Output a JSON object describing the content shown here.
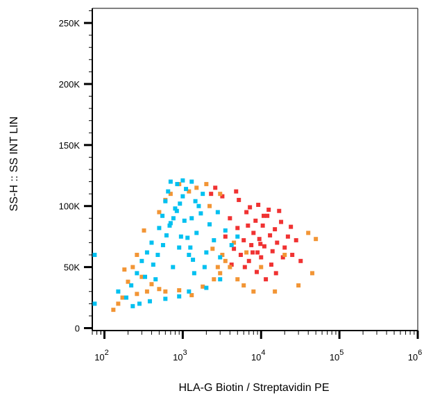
{
  "chart_data": {
    "type": "scatter",
    "title": "",
    "xlabel": "HLA-G Biotin / Streptavidin PE",
    "ylabel": "SS-H :: SS INT LIN",
    "x_scale": "log",
    "xlim": [
      70,
      1000000
    ],
    "ylim": [
      -2000,
      262000
    ],
    "x_ticks": [
      {
        "value": 100,
        "base": "10",
        "exp": "2"
      },
      {
        "value": 1000,
        "base": "10",
        "exp": "3"
      },
      {
        "value": 10000,
        "base": "10",
        "exp": "4"
      },
      {
        "value": 100000,
        "base": "10",
        "exp": "5"
      },
      {
        "value": 1000000,
        "base": "10",
        "exp": "6"
      }
    ],
    "y_ticks": [
      {
        "value": 0,
        "label": "0"
      },
      {
        "value": 50000,
        "label": "50K"
      },
      {
        "value": 100000,
        "label": "100K"
      },
      {
        "value": 150000,
        "label": "150K"
      },
      {
        "value": 200000,
        "label": "200K"
      },
      {
        "value": 250000,
        "label": "250K"
      }
    ],
    "grid": false,
    "legend": "none",
    "series": [
      {
        "color": "#f03232",
        "points": [
          [
            3500,
            75000
          ],
          [
            4000,
            90000
          ],
          [
            4500,
            65000
          ],
          [
            5000,
            82000
          ],
          [
            5500,
            60000
          ],
          [
            6000,
            72000
          ],
          [
            6500,
            95000
          ],
          [
            7000,
            55000
          ],
          [
            7500,
            68000
          ],
          [
            8000,
            78000
          ],
          [
            8500,
            88000
          ],
          [
            9000,
            62000
          ],
          [
            9500,
            73000
          ],
          [
            10000,
            58000
          ],
          [
            10500,
            84000
          ],
          [
            11000,
            67000
          ],
          [
            12000,
            92000
          ],
          [
            13000,
            76000
          ],
          [
            14000,
            63000
          ],
          [
            15000,
            81000
          ],
          [
            16000,
            70000
          ],
          [
            18000,
            87000
          ],
          [
            20000,
            66000
          ],
          [
            22000,
            75000
          ],
          [
            25000,
            60000
          ],
          [
            28000,
            72000
          ],
          [
            32000,
            55000
          ],
          [
            5200,
            105000
          ],
          [
            7200,
            99000
          ],
          [
            9200,
            101000
          ],
          [
            12500,
            97000
          ],
          [
            17000,
            96000
          ],
          [
            6200,
            50000
          ],
          [
            8800,
            46000
          ],
          [
            11500,
            40000
          ],
          [
            15500,
            45000
          ],
          [
            2600,
            115000
          ],
          [
            2300,
            110000
          ],
          [
            3200,
            108000
          ],
          [
            4800,
            112000
          ],
          [
            4200,
            52000
          ],
          [
            13500,
            52000
          ],
          [
            19000,
            58000
          ],
          [
            24000,
            83000
          ],
          [
            10800,
            92000
          ],
          [
            6800,
            84000
          ],
          [
            9800,
            69000
          ],
          [
            7800,
            62000
          ]
        ]
      },
      {
        "color": "#f29535",
        "points": [
          [
            130,
            15000
          ],
          [
            150,
            20000
          ],
          [
            170,
            25000
          ],
          [
            200,
            38000
          ],
          [
            230,
            50000
          ],
          [
            260,
            28000
          ],
          [
            300,
            42000
          ],
          [
            350,
            30000
          ],
          [
            400,
            36000
          ],
          [
            500,
            32000
          ],
          [
            600,
            30000
          ],
          [
            900,
            31000
          ],
          [
            1300,
            27000
          ],
          [
            1800,
            34000
          ],
          [
            2500,
            40000
          ],
          [
            3000,
            45000
          ],
          [
            3500,
            55000
          ],
          [
            4000,
            50000
          ],
          [
            5000,
            40000
          ],
          [
            6000,
            35000
          ],
          [
            8000,
            30000
          ],
          [
            15000,
            30000
          ],
          [
            30000,
            35000
          ],
          [
            45000,
            45000
          ],
          [
            50000,
            73000
          ],
          [
            40000,
            78000
          ],
          [
            20000,
            60000
          ],
          [
            10000,
            50000
          ],
          [
            2000,
            118000
          ],
          [
            1500,
            115000
          ],
          [
            3000,
            110000
          ],
          [
            2400,
            65000
          ],
          [
            3200,
            60000
          ],
          [
            4500,
            70000
          ],
          [
            2800,
            50000
          ],
          [
            6500,
            62000
          ],
          [
            180,
            48000
          ],
          [
            260,
            60000
          ],
          [
            320,
            80000
          ],
          [
            500,
            95000
          ],
          [
            600,
            105000
          ],
          [
            700,
            110000
          ],
          [
            900,
            118000
          ],
          [
            1200,
            112000
          ],
          [
            2200,
            100000
          ]
        ]
      },
      {
        "color": "#00c0f0",
        "points": [
          [
            75,
            60000
          ],
          [
            75,
            20000
          ],
          [
            150,
            30000
          ],
          [
            190,
            25000
          ],
          [
            220,
            35000
          ],
          [
            260,
            45000
          ],
          [
            300,
            55000
          ],
          [
            350,
            62000
          ],
          [
            400,
            70000
          ],
          [
            450,
            40000
          ],
          [
            500,
            82000
          ],
          [
            550,
            92000
          ],
          [
            600,
            104000
          ],
          [
            650,
            112000
          ],
          [
            700,
            86000
          ],
          [
            750,
            50000
          ],
          [
            800,
            98000
          ],
          [
            850,
            118000
          ],
          [
            900,
            66000
          ],
          [
            950,
            75000
          ],
          [
            1000,
            108000
          ],
          [
            1100,
            114000
          ],
          [
            1200,
            60000
          ],
          [
            1300,
            90000
          ],
          [
            1400,
            45000
          ],
          [
            1500,
            78000
          ],
          [
            1600,
            100000
          ],
          [
            1800,
            110000
          ],
          [
            2000,
            62000
          ],
          [
            2200,
            85000
          ],
          [
            2500,
            72000
          ],
          [
            2800,
            95000
          ],
          [
            3000,
            58000
          ],
          [
            3500,
            80000
          ],
          [
            4200,
            68000
          ],
          [
            5000,
            75000
          ],
          [
            330,
            42000
          ],
          [
            420,
            52000
          ],
          [
            480,
            60000
          ],
          [
            560,
            68000
          ],
          [
            620,
            76000
          ],
          [
            680,
            84000
          ],
          [
            760,
            90000
          ],
          [
            840,
            96000
          ],
          [
            920,
            102000
          ],
          [
            1050,
            88000
          ],
          [
            1150,
            74000
          ],
          [
            1250,
            66000
          ],
          [
            1350,
            56000
          ],
          [
            1450,
            104000
          ],
          [
            1700,
            94000
          ],
          [
            1900,
            50000
          ],
          [
            230,
            18000
          ],
          [
            280,
            20000
          ],
          [
            380,
            22000
          ],
          [
            600,
            24000
          ],
          [
            900,
            26000
          ],
          [
            1200,
            30000
          ],
          [
            2000,
            33000
          ],
          [
            3000,
            40000
          ],
          [
            700,
            120000
          ],
          [
            1000,
            121000
          ],
          [
            1300,
            120000
          ]
        ]
      }
    ]
  }
}
